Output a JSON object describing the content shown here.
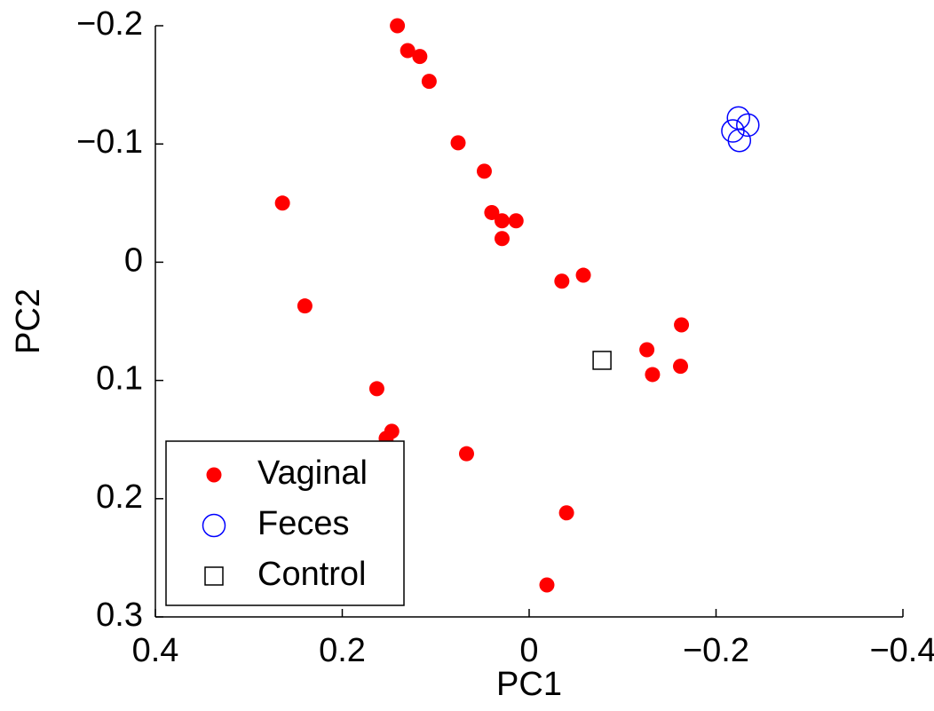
{
  "chart_data": {
    "type": "scatter",
    "xlabel": "PC1",
    "ylabel": "PC2",
    "xlim": [
      0.4,
      -0.4
    ],
    "ylim": [
      0.3,
      -0.2
    ],
    "xticks": [
      0.4,
      0.2,
      0,
      {
        "value": -0.2,
        "label": "−0.2"
      },
      {
        "value": -0.4,
        "label": "−0.4"
      }
    ],
    "yticks": [
      {
        "value": -0.2,
        "label": "−0.2"
      },
      {
        "value": -0.1,
        "label": "−0.1"
      },
      0,
      0.1,
      0.2,
      0.3
    ],
    "legend": "lower left",
    "series": [
      {
        "name": "Vaginal",
        "color": "#ff0000",
        "marker": "filled-circle",
        "x": [
          0.141,
          0.13,
          0.117,
          0.107,
          0.076,
          0.048,
          0.04,
          0.029,
          0.014,
          0.029,
          0.264,
          0.24,
          -0.035,
          -0.058,
          -0.163,
          -0.126,
          -0.132,
          -0.162,
          0.163,
          0.147,
          0.153,
          0.067,
          -0.04,
          -0.019
        ],
        "values": [
          -0.2,
          -0.179,
          -0.174,
          -0.153,
          -0.101,
          -0.077,
          -0.042,
          -0.035,
          -0.035,
          -0.02,
          -0.05,
          0.037,
          0.016,
          0.011,
          0.053,
          0.074,
          0.095,
          0.088,
          0.107,
          0.143,
          0.149,
          0.162,
          0.212,
          0.273
        ]
      },
      {
        "name": "Feces",
        "color": "#0000ff",
        "marker": "open-circle",
        "x": [
          -0.224,
          -0.234,
          -0.218,
          -0.225
        ],
        "values": [
          -0.122,
          -0.116,
          -0.111,
          -0.103
        ]
      },
      {
        "name": "Control",
        "color": "#000000",
        "marker": "open-square",
        "x": [
          -0.078
        ],
        "values": [
          0.083
        ]
      }
    ]
  }
}
